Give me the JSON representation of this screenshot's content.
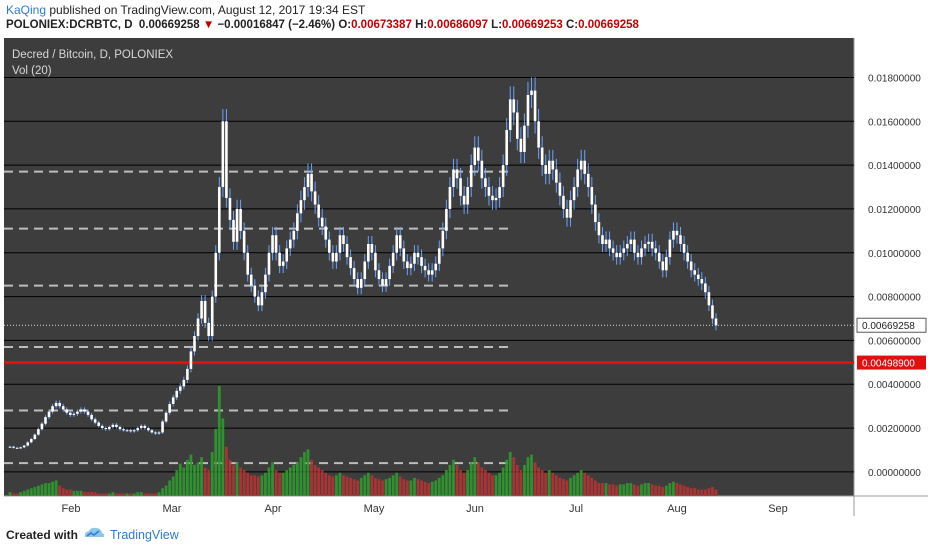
{
  "header": {
    "author": "KaQing",
    "published": " published on TradingView.com, August 12, 2017 19:34 EST",
    "symbol": "POLONIEX:DCRBTC, D",
    "last": "0.00669258",
    "arrow": "▼",
    "change": "−0.00016847 (−2.46%)",
    "o_label": "O:",
    "o_val": "0.00673387",
    "h_label": "H:",
    "h_val": "0.00686097",
    "l_label": "L:",
    "l_val": "0.00669253",
    "c_label": "C:",
    "c_val": "0.00669258"
  },
  "footer": {
    "created": "Created with",
    "brand": "TradingView"
  },
  "colors": {
    "background": "#3d3d3d",
    "grid": "#000000",
    "candle_body": "#ffffff",
    "wick": "#6aa4ff",
    "vol_up": "#2e9a2e",
    "vol_down": "#b53333",
    "red_line": "#e01010",
    "dash": "#bdbdbd"
  },
  "chart_data": {
    "type": "candlestick",
    "title": "Decred / Bitcoin, D, POLONIEX",
    "indicator": "Vol (20)",
    "y_ticks": [
      "0.01800000",
      "0.01600000",
      "0.01400000",
      "0.01200000",
      "0.01000000",
      "0.00800000",
      "0.00600000",
      "0.00400000",
      "0.00200000",
      "0.00000000"
    ],
    "x_ticks": [
      "Feb",
      "Mar",
      "Apr",
      "May",
      "Jun",
      "Jul",
      "Aug",
      "Sep"
    ],
    "ylim": [
      -0.0011,
      0.0198
    ],
    "last_price_label": "0.00669258",
    "last_price": 0.00669258,
    "red_level_label": "0.00498900",
    "red_level": 0.004989,
    "dashed_levels": [
      0.0137,
      0.0111,
      0.0085,
      0.0057,
      0.0028,
      0.0004
    ],
    "closes": [
      0.00115,
      0.0011,
      0.00108,
      0.00112,
      0.0012,
      0.00135,
      0.0015,
      0.0017,
      0.00195,
      0.0022,
      0.0025,
      0.00275,
      0.003,
      0.00315,
      0.003,
      0.00285,
      0.0027,
      0.0026,
      0.00265,
      0.00275,
      0.00285,
      0.00275,
      0.0026,
      0.0024,
      0.00225,
      0.0021,
      0.002,
      0.00195,
      0.00205,
      0.00215,
      0.00205,
      0.00195,
      0.0019,
      0.0019,
      0.00185,
      0.0019,
      0.002,
      0.0021,
      0.002,
      0.0019,
      0.0018,
      0.00175,
      0.0018,
      0.0023,
      0.0027,
      0.0031,
      0.0034,
      0.0037,
      0.0039,
      0.0042,
      0.0047,
      0.0055,
      0.0062,
      0.007,
      0.0078,
      0.0068,
      0.0062,
      0.008,
      0.01,
      0.013,
      0.016,
      0.0125,
      0.0115,
      0.0105,
      0.012,
      0.011,
      0.01,
      0.009,
      0.0085,
      0.008,
      0.0076,
      0.0082,
      0.009,
      0.01,
      0.0108,
      0.01,
      0.0094,
      0.0096,
      0.0102,
      0.0106,
      0.011,
      0.0118,
      0.0124,
      0.013,
      0.0136,
      0.0128,
      0.0122,
      0.0116,
      0.0112,
      0.0106,
      0.01,
      0.0096,
      0.01,
      0.0108,
      0.0104,
      0.0098,
      0.0093,
      0.0088,
      0.0084,
      0.0088,
      0.0096,
      0.0104,
      0.01,
      0.0092,
      0.0088,
      0.0085,
      0.0088,
      0.0094,
      0.01,
      0.0108,
      0.0102,
      0.0096,
      0.0093,
      0.0095,
      0.01,
      0.0098,
      0.0094,
      0.0092,
      0.009,
      0.0092,
      0.0095,
      0.0102,
      0.011,
      0.012,
      0.013,
      0.0138,
      0.0134,
      0.0126,
      0.0122,
      0.013,
      0.014,
      0.0148,
      0.0142,
      0.0134,
      0.013,
      0.0126,
      0.0124,
      0.0125,
      0.013,
      0.014,
      0.0156,
      0.017,
      0.0164,
      0.0152,
      0.0146,
      0.0158,
      0.0172,
      0.0174,
      0.016,
      0.0148,
      0.014,
      0.0136,
      0.0142,
      0.0138,
      0.0132,
      0.0126,
      0.012,
      0.0116,
      0.0124,
      0.013,
      0.0138,
      0.0142,
      0.0136,
      0.013,
      0.0122,
      0.0114,
      0.0108,
      0.0104,
      0.0106,
      0.0102,
      0.01,
      0.0098,
      0.01,
      0.0102,
      0.0104,
      0.0106,
      0.01,
      0.0098,
      0.0102,
      0.0104,
      0.0105,
      0.0102,
      0.01,
      0.0096,
      0.0092,
      0.0098,
      0.0106,
      0.011,
      0.0108,
      0.0104,
      0.01,
      0.0096,
      0.0092,
      0.009,
      0.0088,
      0.0086,
      0.0082,
      0.0076,
      0.007,
      0.00669
    ],
    "volume": [
      0.3,
      0.2,
      0.2,
      0.3,
      0.4,
      0.5,
      0.6,
      0.7,
      0.8,
      0.9,
      1.0,
      1.0,
      1.1,
      1.2,
      0.8,
      0.6,
      0.5,
      0.5,
      0.4,
      0.4,
      0.4,
      0.3,
      0.3,
      0.3,
      0.3,
      0.2,
      0.2,
      0.2,
      0.2,
      0.3,
      0.2,
      0.2,
      0.2,
      0.2,
      0.2,
      0.2,
      0.3,
      0.3,
      0.2,
      0.2,
      0.2,
      0.2,
      0.3,
      0.6,
      0.8,
      1.2,
      1.5,
      2.0,
      2.5,
      2.2,
      2.8,
      3.2,
      2.4,
      2.6,
      3.0,
      2.2,
      2.0,
      3.4,
      5.2,
      8.5,
      6.0,
      3.8,
      2.8,
      2.4,
      2.6,
      2.2,
      2.0,
      1.8,
      1.6,
      1.6,
      1.5,
      1.6,
      1.8,
      2.2,
      2.6,
      2.0,
      1.8,
      1.8,
      2.0,
      2.2,
      2.4,
      2.6,
      3.0,
      3.4,
      3.6,
      2.8,
      2.4,
      2.2,
      2.0,
      1.8,
      1.6,
      1.5,
      1.6,
      1.8,
      1.6,
      1.5,
      1.4,
      1.3,
      1.2,
      1.4,
      1.6,
      1.8,
      1.6,
      1.4,
      1.3,
      1.2,
      1.3,
      1.4,
      1.6,
      1.8,
      1.5,
      1.3,
      1.2,
      1.2,
      1.4,
      1.3,
      1.2,
      1.1,
      1.0,
      1.1,
      1.2,
      1.4,
      1.6,
      2.0,
      2.4,
      2.8,
      2.4,
      2.0,
      1.8,
      2.0,
      2.6,
      3.0,
      2.6,
      2.2,
      2.0,
      1.8,
      1.6,
      1.6,
      1.8,
      2.2,
      2.8,
      3.4,
      3.0,
      2.4,
      2.0,
      2.4,
      3.0,
      3.2,
      2.6,
      2.2,
      2.0,
      1.8,
      2.0,
      1.8,
      1.6,
      1.4,
      1.3,
      1.2,
      1.4,
      1.6,
      1.8,
      2.0,
      1.8,
      1.6,
      1.4,
      1.2,
      1.0,
      1.0,
      1.0,
      0.9,
      0.9,
      0.8,
      0.9,
      0.9,
      1.0,
      1.0,
      0.9,
      0.8,
      0.9,
      1.0,
      1.0,
      0.9,
      0.8,
      0.8,
      0.7,
      0.8,
      1.0,
      1.1,
      1.0,
      0.9,
      0.8,
      0.7,
      0.6,
      0.6,
      0.5,
      0.5,
      0.5,
      0.6,
      0.7,
      0.5
    ]
  }
}
